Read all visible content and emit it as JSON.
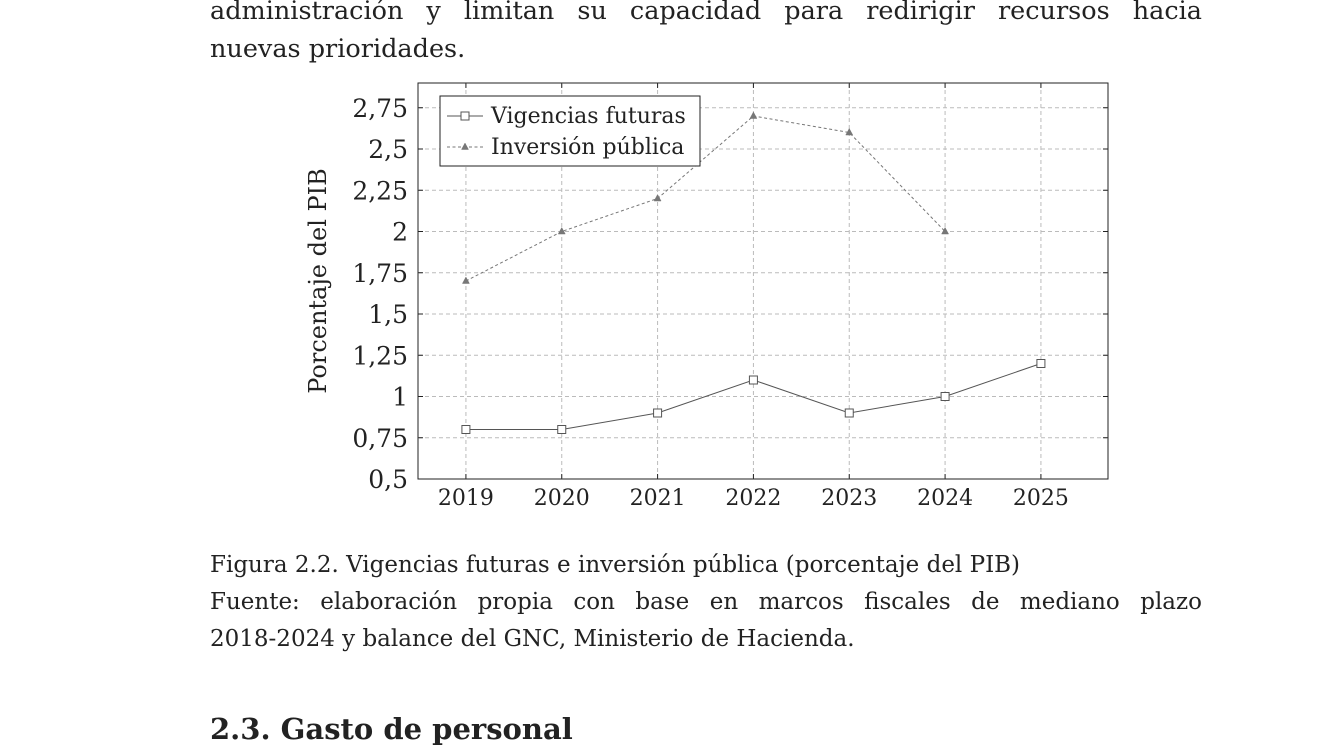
{
  "body_text": {
    "line1": "administración y limitan su capacidad para redirigir recursos hacia",
    "line2": "nuevas prioridades."
  },
  "chart_data": {
    "type": "line",
    "x": [
      2019,
      2020,
      2021,
      2022,
      2023,
      2024,
      2025
    ],
    "ylabel": "Porcentaje del PIB",
    "ylim": [
      0.5,
      2.9
    ],
    "yticks": [
      "0,5",
      "0,75",
      "1",
      "1,25",
      "1,5",
      "1,75",
      "2",
      "2,25",
      "2,5",
      "2,75"
    ],
    "xticks": [
      "2019",
      "2020",
      "2021",
      "2022",
      "2023",
      "2024",
      "2025"
    ],
    "grid": true,
    "legend_position": "top-left",
    "series": [
      {
        "name": "Vigencias futuras",
        "x": [
          2019,
          2020,
          2021,
          2022,
          2023,
          2024,
          2025
        ],
        "values": [
          0.8,
          0.8,
          0.9,
          1.1,
          0.9,
          1.0,
          1.2
        ],
        "marker": "square",
        "line": "solid",
        "color": "#555555"
      },
      {
        "name": "Inversión pública",
        "x": [
          2019,
          2020,
          2021,
          2022,
          2023,
          2024
        ],
        "values": [
          1.7,
          2.0,
          2.2,
          2.7,
          2.6,
          2.0
        ],
        "marker": "triangle",
        "line": "dashed",
        "color": "#777777"
      }
    ]
  },
  "caption": {
    "figure": "Figura 2.2. Vigencias futuras e inversión pública (porcentaje del PIB)",
    "source_line1": "Fuente: elaboración propia con base en marcos fiscales de mediano plazo",
    "source_line2": "2018-2024 y balance del GNC, Ministerio de Hacienda."
  },
  "section": {
    "heading": "2.3. Gasto de personal"
  }
}
